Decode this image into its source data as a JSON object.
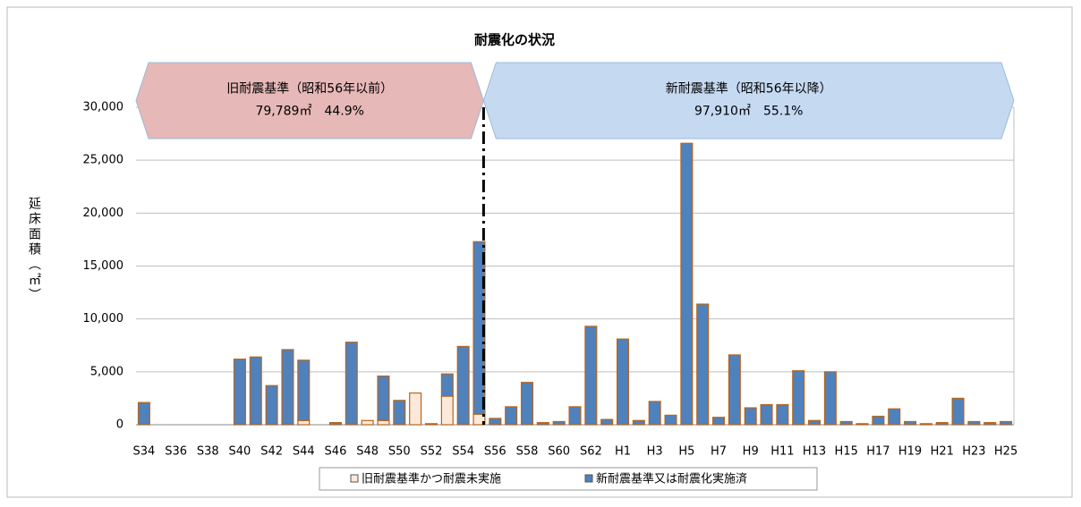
{
  "chart_data": {
    "type": "stacked_bar",
    "title": "耐震化の状況",
    "y_label": "延床面積（㎡）",
    "annotations": [
      {
        "lines": [
          "旧耐震基準（昭和56年以前）",
          "79,789㎡　44.9%"
        ],
        "color": "#e6b8b7"
      },
      {
        "lines": [
          "新耐震基準（昭和56年以降）",
          "97,910㎡　55.1%"
        ],
        "color": "#c5d9f1"
      }
    ],
    "categories": [
      "S34",
      null,
      "S36",
      null,
      "S38",
      null,
      "S40",
      null,
      "S42",
      null,
      "S44",
      null,
      "S46",
      null,
      "S48",
      null,
      "S50",
      null,
      "S52",
      null,
      "S54",
      null,
      "S56",
      null,
      "S58",
      null,
      "S60",
      null,
      "S62",
      null,
      "H1",
      null,
      "H3",
      null,
      "H5",
      null,
      "H7",
      null,
      "H9",
      null,
      "H11",
      null,
      "H13",
      null,
      "H15",
      null,
      "H17",
      null,
      "H19",
      null,
      "H21",
      null,
      "H23",
      null,
      "H25"
    ],
    "series": [
      {
        "name": "旧耐震基準かつ耐震未実施",
        "color": "#fde9d9",
        "values": [
          0,
          0,
          0,
          0,
          0,
          0,
          0,
          0,
          0,
          0,
          400,
          0,
          0,
          0,
          400,
          400,
          0,
          3000,
          0,
          2700,
          0,
          1000,
          0,
          0,
          0,
          0,
          0,
          0,
          0,
          0,
          0,
          0,
          0,
          0,
          0,
          0,
          0,
          0,
          0,
          0,
          0,
          0,
          0,
          0,
          0,
          0,
          0,
          0,
          0,
          0,
          0,
          0,
          0,
          0,
          0
        ]
      },
      {
        "name": "新耐震基準又は耐震化実施済",
        "color": "#4f81bd",
        "values": [
          2100,
          0,
          0,
          0,
          0,
          0,
          6200,
          6400,
          3700,
          7100,
          5700,
          0,
          200,
          7800,
          0,
          4200,
          2300,
          0,
          100,
          2100,
          7400,
          16300,
          600,
          1700,
          4000,
          200,
          300,
          1700,
          9300,
          500,
          8100,
          400,
          2200,
          900,
          26600,
          11400,
          700,
          6600,
          1600,
          1900,
          1900,
          5100,
          400,
          5000,
          300,
          100,
          800,
          1500,
          300,
          100,
          200,
          2500,
          300,
          200,
          300
        ]
      }
    ],
    "ylim": [
      0,
      30000
    ],
    "yticks": [
      0,
      {
        "value": 5000,
        "label": "5,000"
      },
      {
        "value": 10000,
        "label": "10,000"
      },
      {
        "value": 15000,
        "label": "15,000"
      },
      {
        "value": 20000,
        "label": "20,000"
      },
      {
        "value": 25000,
        "label": "25,000"
      },
      {
        "value": 30000,
        "label": "30,000"
      }
    ],
    "grid": true
  }
}
